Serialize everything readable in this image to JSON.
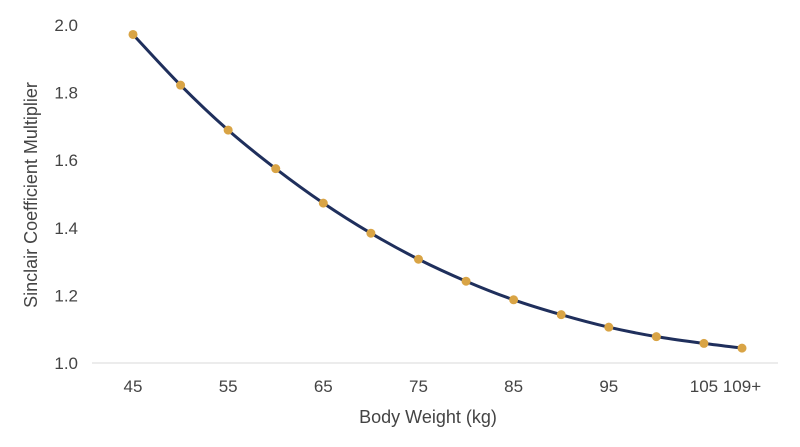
{
  "chart_data": {
    "type": "line",
    "title": "",
    "xlabel": "Body Weight (kg)",
    "ylabel": "Sinclair Coefficient Multiplier",
    "x": [
      45,
      50,
      55,
      60,
      65,
      70,
      75,
      80,
      85,
      90,
      95,
      100,
      105,
      109
    ],
    "x_tick_labels": [
      "45",
      "55",
      "65",
      "75",
      "85",
      "95",
      "105",
      "109+"
    ],
    "x_tick_values": [
      45,
      55,
      65,
      75,
      85,
      95,
      105,
      109
    ],
    "y_ticks": [
      "1.0",
      "1.2",
      "1.4",
      "1.6",
      "1.8",
      "2.0"
    ],
    "ylim": [
      1.0,
      2.0
    ],
    "series": [
      {
        "values": [
          1.972,
          1.822,
          1.689,
          1.575,
          1.473,
          1.384,
          1.307,
          1.242,
          1.187,
          1.143,
          1.106,
          1.078,
          1.058,
          1.044
        ],
        "line_color": "#1f2f5c",
        "marker_color": "#d9a445"
      }
    ],
    "grid": false,
    "legend": "none"
  }
}
